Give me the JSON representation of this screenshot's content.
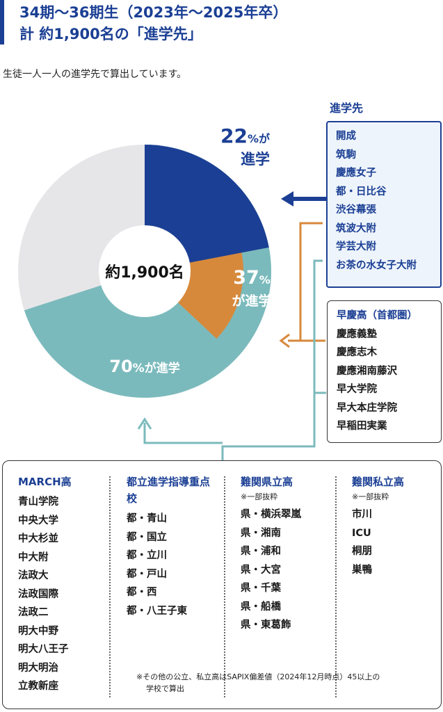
{
  "header": {
    "line1": "34期～36期生（2023年～2025年卒）",
    "line2": "計 約1,900名の「進学先」"
  },
  "intro": "生徒一人一人の進学先で算出しています。",
  "chart_data": {
    "type": "pie",
    "center_label": "約1,900名",
    "note": "cumulative shares (nested rings)",
    "segments": [
      {
        "value_pct": 22,
        "label_num": "22",
        "label_suffix": "%が",
        "label_line2": "進学",
        "color": "#1b3f94"
      },
      {
        "value_pct": 37,
        "label_num": "37",
        "label_suffix": "%",
        "label_line2": "が進学",
        "color": "#d7893b"
      },
      {
        "value_pct": 70,
        "label_num": "70",
        "label_suffix": "%が進学",
        "label_line2": "",
        "color": "#7bbabc"
      }
    ],
    "remainder_color": "#e6e6e8"
  },
  "top_box": {
    "title": "進学先",
    "items": [
      "開成",
      "筑駒",
      "慶應女子",
      "都・日比谷",
      "渋谷幕張",
      "筑波大附",
      "学芸大附",
      "お茶の水女子大附"
    ]
  },
  "mid_box": {
    "title": "早慶高（首都圏）",
    "items": [
      "慶應義塾",
      "慶應志木",
      "慶應湘南藤沢",
      "早大学院",
      "早大本庄学院",
      "早稲田実業"
    ]
  },
  "bottom_box": {
    "columns": [
      {
        "title": "MARCH高",
        "note": "",
        "items": [
          "青山学院",
          "中央大学",
          "中大杉並",
          "中大附",
          "法政大",
          "法政国際",
          "法政二",
          "明大中野",
          "明大八王子",
          "明大明治",
          "立教新座"
        ]
      },
      {
        "title": "都立進学指導重点校",
        "note": "",
        "items": [
          "都・青山",
          "都・国立",
          "都・立川",
          "都・戸山",
          "都・西",
          "都・八王子東"
        ]
      },
      {
        "title": "難関県立高",
        "note": "※一部抜粋",
        "items": [
          "県・横浜翠嵐",
          "県・湘南",
          "県・浦和",
          "県・大宮",
          "県・千葉",
          "県・船橋",
          "県・東葛飾"
        ]
      },
      {
        "title": "難関私立高",
        "note": "※一部抜粋",
        "items": [
          "市川",
          "ICU",
          "桐朋",
          "巣鴨"
        ]
      }
    ],
    "footnote_line1": "※その他の公立、私立高はSAPIX偏差値（2024年12月時点）45以上の",
    "footnote_line2": "学校で算出"
  }
}
